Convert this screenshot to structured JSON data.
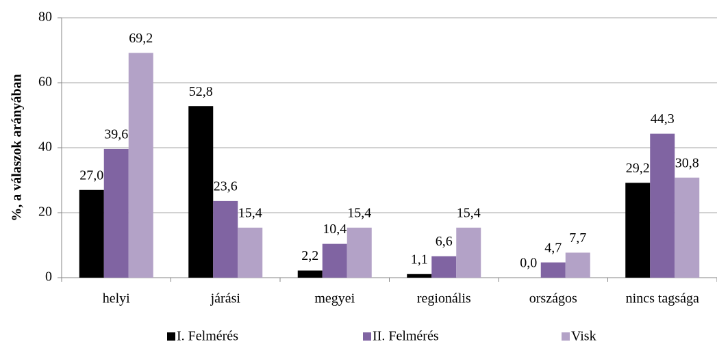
{
  "chart_data": {
    "type": "bar",
    "ylabel": "%, a válaszok arányában",
    "categories": [
      "helyi",
      "járási",
      "megyei",
      "regionális",
      "országos",
      "nincs tagsága"
    ],
    "series": [
      {
        "name": "I. Felmérés",
        "color": "#000000",
        "values": [
          27.0,
          52.8,
          2.2,
          1.1,
          0.0,
          29.2
        ],
        "value_labels": [
          "27,0",
          "52,8",
          "2,2",
          "1,1",
          "0,0",
          "29,2"
        ]
      },
      {
        "name": "II. Felmérés",
        "color": "#8064a2",
        "values": [
          39.6,
          23.6,
          10.4,
          6.6,
          4.7,
          44.3
        ],
        "value_labels": [
          "39,6",
          "23,6",
          "10,4",
          "6,6",
          "4,7",
          "44,3"
        ]
      },
      {
        "name": "Visk",
        "color": "#b3a2c7",
        "values": [
          69.2,
          15.4,
          15.4,
          15.4,
          7.7,
          30.8
        ],
        "value_labels": [
          "69,2",
          "15,4",
          "15,4",
          "15,4",
          "7,7",
          "30,8"
        ]
      }
    ],
    "ylim": [
      0,
      80
    ],
    "yticks": [
      0,
      20,
      40,
      60,
      80
    ],
    "grid": true,
    "legend": "bottom"
  }
}
